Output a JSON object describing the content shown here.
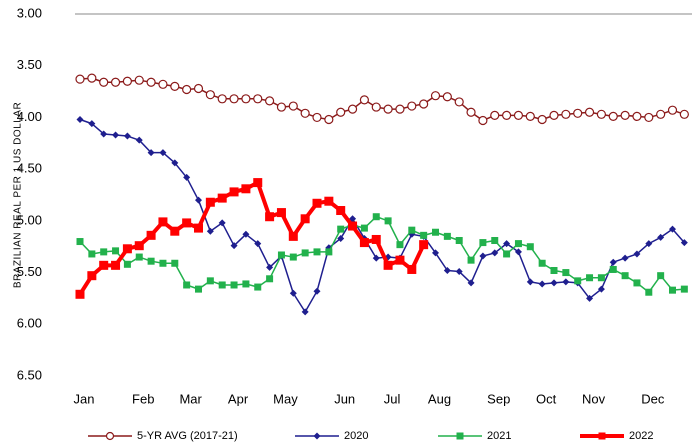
{
  "chart_data": {
    "type": "line",
    "y_axis_label": "BRAZILIAN REAL PER 1 US DOLLAR",
    "y_inverted": true,
    "ylim": [
      3,
      6.5
    ],
    "yticks": [
      {
        "value": 3,
        "label": "3.00"
      },
      {
        "value": 3.5,
        "label": "3.50"
      },
      {
        "value": 4,
        "label": "4.00"
      },
      {
        "value": 4.5,
        "label": "4.50"
      },
      {
        "value": 5,
        "label": "5.00"
      },
      {
        "value": 5.5,
        "label": "5.50"
      },
      {
        "value": 6,
        "label": "6.00"
      },
      {
        "value": 6.5,
        "label": "6.50"
      }
    ],
    "grid": false,
    "legend": "bottom",
    "categories": [
      "Jan",
      null,
      null,
      null,
      null,
      "Feb",
      null,
      null,
      null,
      "Mar",
      null,
      null,
      null,
      "Apr",
      null,
      null,
      null,
      "May",
      null,
      null,
      null,
      null,
      "Jun",
      null,
      null,
      null,
      "Jul",
      null,
      null,
      null,
      "Aug",
      null,
      null,
      null,
      null,
      "Sep",
      null,
      null,
      null,
      "Oct",
      null,
      null,
      null,
      "Nov",
      null,
      null,
      null,
      null,
      "Dec",
      null,
      null,
      null
    ],
    "series": [
      {
        "name": "5-YR AVG (2017-21)",
        "color": "#8b1a1a",
        "marker": "circle",
        "values": [
          3.63,
          3.62,
          3.66,
          3.66,
          3.65,
          3.64,
          3.66,
          3.68,
          3.7,
          3.73,
          3.72,
          3.78,
          3.82,
          3.82,
          3.82,
          3.82,
          3.84,
          3.9,
          3.89,
          3.96,
          4.0,
          4.02,
          3.95,
          3.92,
          3.83,
          3.9,
          3.92,
          3.92,
          3.89,
          3.87,
          3.79,
          3.8,
          3.85,
          3.95,
          4.03,
          3.98,
          3.98,
          3.98,
          3.99,
          4.02,
          3.98,
          3.97,
          3.96,
          3.95,
          3.97,
          3.99,
          3.98,
          3.99,
          4.0,
          3.97,
          3.93,
          3.97
        ]
      },
      {
        "name": "2020",
        "color": "#1f1f8f",
        "marker": "diamond",
        "values": [
          4.02,
          4.06,
          4.16,
          4.17,
          4.18,
          4.22,
          4.34,
          4.34,
          4.44,
          4.58,
          4.8,
          5.1,
          5.02,
          5.24,
          5.13,
          5.22,
          5.45,
          5.34,
          5.7,
          5.88,
          5.68,
          5.26,
          5.17,
          4.98,
          5.17,
          5.36,
          5.35,
          5.36,
          5.13,
          5.15,
          5.31,
          5.48,
          5.49,
          5.6,
          5.34,
          5.31,
          5.22,
          5.3,
          5.59,
          5.61,
          5.6,
          5.59,
          5.6,
          5.75,
          5.66,
          5.4,
          5.36,
          5.32,
          5.22,
          5.16,
          5.08,
          5.21
        ]
      },
      {
        "name": "2021",
        "color": "#22b14c",
        "marker": "square",
        "values": [
          5.2,
          5.32,
          5.3,
          5.29,
          5.42,
          5.35,
          5.39,
          5.41,
          5.41,
          5.62,
          5.66,
          5.58,
          5.62,
          5.62,
          5.61,
          5.64,
          5.56,
          5.33,
          5.35,
          5.31,
          5.3,
          5.3,
          5.08,
          5.04,
          5.07,
          4.96,
          5.0,
          5.23,
          5.09,
          5.14,
          5.11,
          5.15,
          5.19,
          5.38,
          5.21,
          5.19,
          5.32,
          5.22,
          5.25,
          5.41,
          5.48,
          5.5,
          5.58,
          5.55,
          5.55,
          5.47,
          5.53,
          5.6,
          5.69,
          5.53,
          5.67,
          5.66
        ]
      },
      {
        "name": "2022",
        "color": "#ff0000",
        "marker": "square",
        "thick": true,
        "values": [
          5.71,
          5.53,
          5.43,
          5.43,
          5.27,
          5.24,
          5.14,
          5.01,
          5.1,
          5.02,
          5.07,
          4.82,
          4.78,
          4.72,
          4.69,
          4.63,
          4.96,
          4.92,
          5.15,
          4.98,
          4.83,
          4.81,
          4.9,
          5.05,
          5.21,
          5.18,
          5.43,
          5.38,
          5.47,
          5.23,
          null,
          null,
          null,
          null,
          null,
          null,
          null,
          null,
          null,
          null,
          null,
          null,
          null,
          null,
          null,
          null,
          null,
          null,
          null,
          null,
          null,
          null
        ]
      }
    ]
  }
}
